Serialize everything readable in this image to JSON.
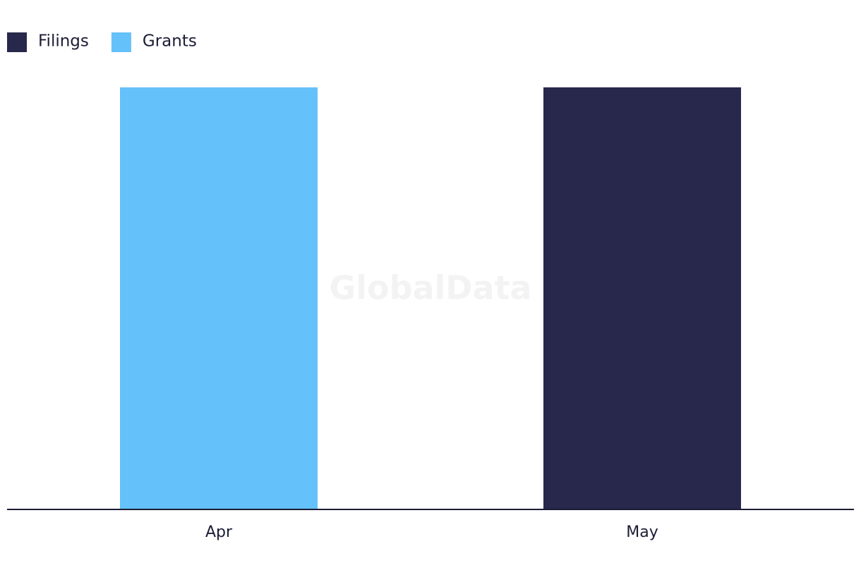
{
  "chart_data": {
    "type": "bar",
    "watermark": "GlobalData",
    "categories": [
      "Apr",
      "May"
    ],
    "series": [
      {
        "name": "Filings",
        "color": "#27284b",
        "values": [
          null,
          1
        ]
      },
      {
        "name": "Grants",
        "color": "#64c1f9",
        "values": [
          1,
          null
        ]
      }
    ],
    "ylim": [
      0,
      1
    ],
    "legend": "top-left"
  }
}
